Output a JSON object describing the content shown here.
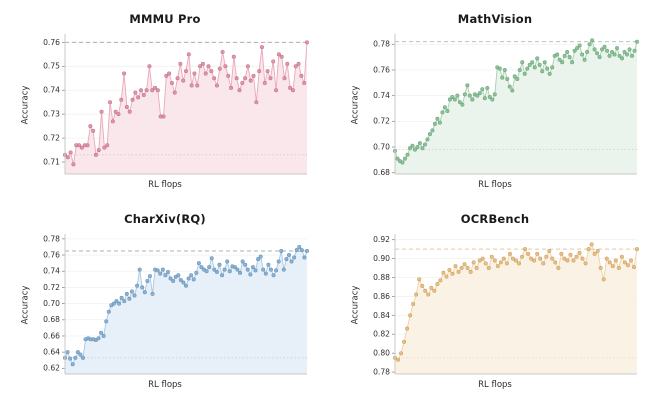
{
  "figure": {
    "axis_x_label": "RL flops",
    "axis_y_label": "Accuracy"
  },
  "chart_data": [
    {
      "type": "line",
      "title": "MMMU Pro",
      "xlabel": "RL flops",
      "ylabel": "Accuracy",
      "ylim": [
        0.705,
        0.7635
      ],
      "yticks": [
        0.71,
        0.72,
        0.73,
        0.74,
        0.75,
        0.76
      ],
      "grid": true,
      "legend": "none",
      "ref_max": 0.76,
      "ref_min": 0.713,
      "colors": {
        "line": "#eaa9b8",
        "marker": "#db8ba1",
        "marker_edge": "#c5758b",
        "fill": "#f8e4e9",
        "ref_max": "#b7abae",
        "ref_min": "#d9c4ca"
      },
      "values": [
        0.713,
        0.712,
        0.714,
        0.709,
        0.717,
        0.717,
        0.716,
        0.717,
        0.717,
        0.725,
        0.723,
        0.713,
        0.715,
        0.731,
        0.716,
        0.717,
        0.735,
        0.727,
        0.731,
        0.73,
        0.736,
        0.747,
        0.733,
        0.731,
        0.736,
        0.739,
        0.737,
        0.74,
        0.738,
        0.74,
        0.75,
        0.74,
        0.741,
        0.74,
        0.729,
        0.729,
        0.746,
        0.747,
        0.743,
        0.739,
        0.745,
        0.751,
        0.744,
        0.748,
        0.755,
        0.742,
        0.747,
        0.742,
        0.75,
        0.751,
        0.747,
        0.75,
        0.748,
        0.745,
        0.742,
        0.749,
        0.756,
        0.75,
        0.746,
        0.741,
        0.754,
        0.745,
        0.74,
        0.743,
        0.745,
        0.75,
        0.744,
        0.746,
        0.735,
        0.748,
        0.758,
        0.743,
        0.748,
        0.745,
        0.752,
        0.74,
        0.755,
        0.754,
        0.745,
        0.751,
        0.741,
        0.74,
        0.75,
        0.751,
        0.746,
        0.743,
        0.76
      ]
    },
    {
      "type": "line",
      "title": "MathVision",
      "xlabel": "RL flops",
      "ylabel": "Accuracy",
      "ylim": [
        0.679,
        0.788
      ],
      "yticks": [
        0.68,
        0.7,
        0.72,
        0.74,
        0.76,
        0.78
      ],
      "grid": true,
      "legend": "none",
      "ref_max": 0.782,
      "ref_min": 0.698,
      "colors": {
        "line": "#a8d0b0",
        "marker": "#84ba90",
        "marker_edge": "#6ba87b",
        "fill": "#e8f3ea",
        "ref_max": "#a9bfae",
        "ref_min": "#c9d6cc"
      },
      "values": [
        0.697,
        0.691,
        0.689,
        0.688,
        0.691,
        0.694,
        0.699,
        0.701,
        0.698,
        0.7,
        0.703,
        0.699,
        0.702,
        0.706,
        0.71,
        0.713,
        0.718,
        0.722,
        0.719,
        0.727,
        0.731,
        0.728,
        0.737,
        0.739,
        0.737,
        0.74,
        0.735,
        0.733,
        0.741,
        0.748,
        0.74,
        0.737,
        0.741,
        0.74,
        0.742,
        0.745,
        0.738,
        0.746,
        0.739,
        0.737,
        0.741,
        0.762,
        0.761,
        0.754,
        0.76,
        0.753,
        0.747,
        0.744,
        0.755,
        0.753,
        0.76,
        0.766,
        0.757,
        0.761,
        0.764,
        0.766,
        0.762,
        0.769,
        0.764,
        0.759,
        0.766,
        0.761,
        0.757,
        0.762,
        0.771,
        0.772,
        0.768,
        0.766,
        0.771,
        0.774,
        0.77,
        0.766,
        0.775,
        0.777,
        0.779,
        0.772,
        0.768,
        0.774,
        0.78,
        0.783,
        0.776,
        0.773,
        0.77,
        0.776,
        0.778,
        0.775,
        0.771,
        0.774,
        0.772,
        0.777,
        0.771,
        0.769,
        0.774,
        0.772,
        0.776,
        0.771,
        0.775,
        0.782
      ]
    },
    {
      "type": "line",
      "title": "CharXiv(RQ)",
      "xlabel": "RL flops",
      "ylabel": "Accuracy",
      "ylim": [
        0.613,
        0.786
      ],
      "yticks": [
        0.62,
        0.64,
        0.66,
        0.68,
        0.7,
        0.72,
        0.74,
        0.76,
        0.78
      ],
      "grid": true,
      "legend": "none",
      "ref_max": 0.765,
      "ref_min": 0.633,
      "colors": {
        "line": "#a6c8e0",
        "marker": "#7fa9cc",
        "marker_edge": "#6a95bb",
        "fill": "#e4eef7",
        "ref_max": "#a3b8ab",
        "ref_min": "#c5ced6"
      },
      "values": [
        0.633,
        0.64,
        0.632,
        0.625,
        0.633,
        0.64,
        0.637,
        0.633,
        0.656,
        0.657,
        0.656,
        0.656,
        0.655,
        0.657,
        0.664,
        0.66,
        0.678,
        0.69,
        0.698,
        0.7,
        0.703,
        0.7,
        0.707,
        0.703,
        0.712,
        0.706,
        0.715,
        0.71,
        0.722,
        0.742,
        0.72,
        0.714,
        0.728,
        0.734,
        0.712,
        0.742,
        0.741,
        0.737,
        0.742,
        0.735,
        0.739,
        0.731,
        0.728,
        0.733,
        0.735,
        0.729,
        0.726,
        0.722,
        0.731,
        0.735,
        0.73,
        0.738,
        0.75,
        0.745,
        0.742,
        0.74,
        0.745,
        0.756,
        0.742,
        0.739,
        0.748,
        0.735,
        0.742,
        0.752,
        0.74,
        0.746,
        0.745,
        0.742,
        0.738,
        0.752,
        0.748,
        0.742,
        0.736,
        0.745,
        0.741,
        0.755,
        0.758,
        0.742,
        0.737,
        0.748,
        0.742,
        0.735,
        0.741,
        0.752,
        0.765,
        0.742,
        0.755,
        0.76,
        0.752,
        0.757,
        0.766,
        0.77,
        0.766,
        0.757,
        0.765
      ]
    },
    {
      "type": "line",
      "title": "OCRBench",
      "xlabel": "RL flops",
      "ylabel": "Accuracy",
      "ylim": [
        0.778,
        0.926
      ],
      "yticks": [
        0.78,
        0.8,
        0.82,
        0.84,
        0.86,
        0.88,
        0.9,
        0.92
      ],
      "grid": true,
      "legend": "none",
      "ref_max": 0.91,
      "ref_min": 0.795,
      "colors": {
        "line": "#eed3a4",
        "marker": "#e3b87e",
        "marker_edge": "#d2a162",
        "fill": "#faf1e2",
        "ref_max": "#e5c99d",
        "ref_min": "#e9dac3"
      },
      "values": [
        0.795,
        0.793,
        0.8,
        0.812,
        0.826,
        0.84,
        0.852,
        0.862,
        0.878,
        0.871,
        0.866,
        0.862,
        0.869,
        0.866,
        0.873,
        0.877,
        0.885,
        0.881,
        0.888,
        0.884,
        0.892,
        0.886,
        0.89,
        0.894,
        0.89,
        0.886,
        0.896,
        0.89,
        0.898,
        0.9,
        0.895,
        0.89,
        0.902,
        0.898,
        0.892,
        0.896,
        0.9,
        0.895,
        0.905,
        0.9,
        0.898,
        0.895,
        0.902,
        0.91,
        0.905,
        0.9,
        0.898,
        0.905,
        0.9,
        0.895,
        0.902,
        0.908,
        0.9,
        0.896,
        0.89,
        0.905,
        0.9,
        0.898,
        0.904,
        0.898,
        0.902,
        0.906,
        0.9,
        0.895,
        0.91,
        0.915,
        0.905,
        0.908,
        0.89,
        0.878,
        0.9,
        0.896,
        0.892,
        0.898,
        0.89,
        0.902,
        0.896,
        0.893,
        0.898,
        0.891,
        0.91
      ]
    }
  ]
}
